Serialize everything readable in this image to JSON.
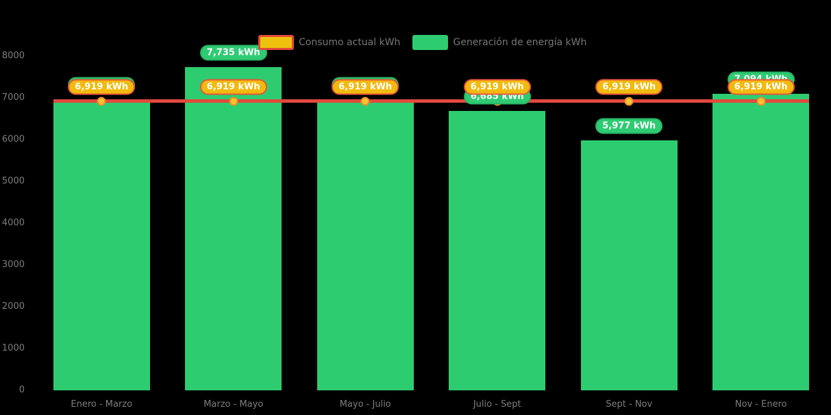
{
  "chart_data": {
    "type": "bar+line",
    "title": "",
    "xlabel": "",
    "ylabel": "",
    "categories": [
      "Enero - Marzo",
      "Marzo - Mayo",
      "Mayo - Julio",
      "Julio - Sept",
      "Sept - Nov",
      "Nov - Enero"
    ],
    "series": [
      {
        "name": "Consumo actual kWh",
        "type": "line",
        "values": [
          6919,
          6919,
          6919,
          6919,
          6919,
          6919
        ],
        "data_labels": [
          "6,919 kWh",
          "6,919 kWh",
          "6,919 kWh",
          "6,919 kWh",
          "6,919 kWh",
          "6,919 kWh"
        ],
        "color": "#e2493d",
        "marker_fill": "#f8c52f",
        "marker_border": "#ef8c2e",
        "badge_fill": "#f2ba0e",
        "badge_border": "#e8553b",
        "legend_swatch_fill": "#eec20c",
        "legend_swatch_border": "#e2493d"
      },
      {
        "name": "Generación de energía kWh",
        "type": "bar",
        "values": [
          6967,
          7735,
          6967,
          6685,
          5977,
          7094
        ],
        "data_labels": [
          "6,967 kWh",
          "7,735 kWh",
          "6,967 kWh",
          "6,685 kWh",
          "5,977 kWh",
          "7,094 kWh"
        ],
        "data_label_occluded": [
          true,
          false,
          true,
          false,
          false,
          false
        ],
        "color": "#2ecc71",
        "badge_fill": "#2fcb73",
        "badge_border": "#27b565"
      }
    ],
    "y_ticks": [
      0,
      1000,
      2000,
      3000,
      4000,
      5000,
      6000,
      7000,
      8000
    ],
    "ylim": [
      0,
      8000
    ],
    "grid": false,
    "legend_position": "top-center",
    "background": "#000000",
    "axis_text_color": "#7d7d7d"
  }
}
